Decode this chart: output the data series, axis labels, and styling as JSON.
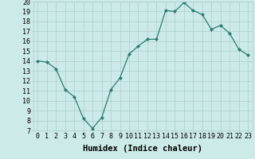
{
  "x": [
    0,
    1,
    2,
    3,
    4,
    5,
    6,
    7,
    8,
    9,
    10,
    11,
    12,
    13,
    14,
    15,
    16,
    17,
    18,
    19,
    20,
    21,
    22,
    23
  ],
  "y": [
    14,
    13.9,
    13.2,
    11.1,
    10.4,
    8.2,
    7.2,
    8.3,
    11.1,
    12.3,
    14.7,
    15.5,
    16.2,
    16.2,
    19.1,
    19.0,
    19.9,
    19.1,
    18.7,
    17.2,
    17.6,
    16.8,
    15.2,
    14.6
  ],
  "line_color": "#2d7d6e",
  "marker": "D",
  "marker_size": 2.0,
  "bg_color": "#cceae7",
  "grid_color": "#aacfcc",
  "xlabel": "Humidex (Indice chaleur)",
  "ylim": [
    7,
    20
  ],
  "xlim_min": -0.5,
  "xlim_max": 23.5,
  "yticks": [
    7,
    8,
    9,
    10,
    11,
    12,
    13,
    14,
    15,
    16,
    17,
    18,
    19,
    20
  ],
  "xticks": [
    0,
    1,
    2,
    3,
    4,
    5,
    6,
    7,
    8,
    9,
    10,
    11,
    12,
    13,
    14,
    15,
    16,
    17,
    18,
    19,
    20,
    21,
    22,
    23
  ],
  "xlabel_fontsize": 7.5,
  "tick_fontsize": 6.0,
  "line_width": 0.9
}
